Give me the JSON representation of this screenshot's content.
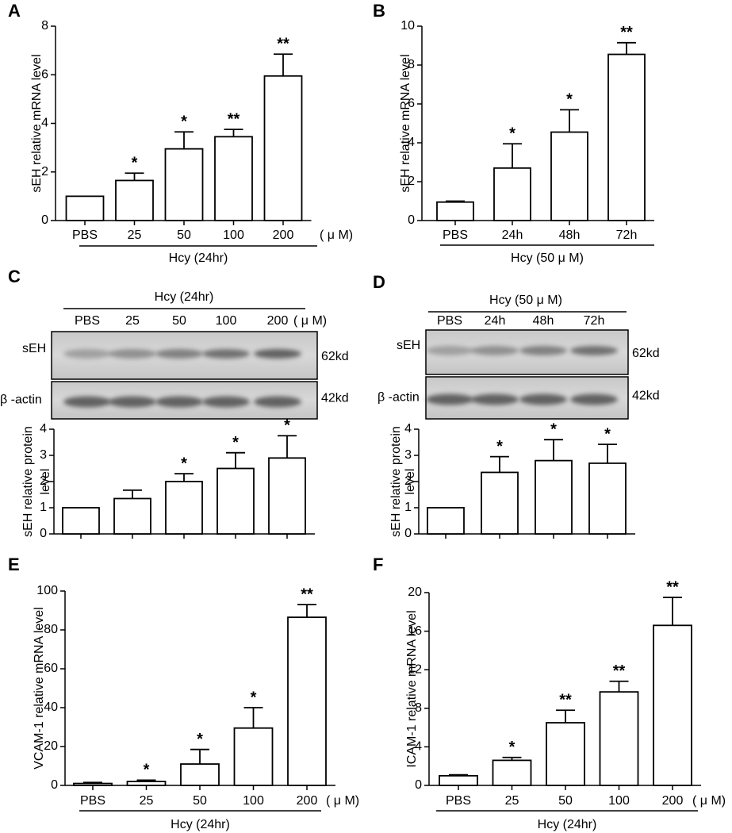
{
  "chart_data": [
    {
      "type": "bar",
      "panel": "A",
      "ylabel": [
        "sEH relative mRNA level"
      ],
      "categories": [
        "PBS",
        "25",
        "50",
        "100",
        "200"
      ],
      "unit": "( μ M)",
      "group_label": "Hcy (24hr)",
      "values": [
        1,
        1.65,
        2.95,
        3.45,
        5.95
      ],
      "errors": [
        null,
        0.3,
        0.7,
        0.3,
        0.9
      ],
      "annotations": [
        null,
        "*",
        "*",
        "**",
        "**"
      ],
      "ylim": [
        0,
        8
      ],
      "yticks": [
        0,
        2,
        4,
        6,
        8
      ],
      "color": "#ffffff"
    },
    {
      "type": "bar",
      "panel": "B",
      "ylabel": [
        "sEH relative mRNA level"
      ],
      "categories": [
        "PBS",
        "24h",
        "48h",
        "72h"
      ],
      "group_label": "Hcy (50 μ M)",
      "values": [
        0.95,
        2.7,
        4.55,
        8.55
      ],
      "errors": [
        0.05,
        1.25,
        1.15,
        0.6
      ],
      "annotations": [
        null,
        "*",
        "*",
        "**"
      ],
      "ylim": [
        0,
        10
      ],
      "yticks": [
        0,
        2,
        4,
        6,
        8,
        10
      ],
      "color": "#ffffff"
    },
    {
      "type": "bar",
      "panel": "C",
      "ylabel": [
        "sEH relative protein",
        "level"
      ],
      "categories": [
        null,
        null,
        null,
        null,
        null
      ],
      "values": [
        1,
        1.35,
        2.0,
        2.5,
        2.9
      ],
      "errors": [
        null,
        0.32,
        0.3,
        0.6,
        0.85
      ],
      "annotations": [
        null,
        null,
        "*",
        "*",
        "*"
      ],
      "ylim": [
        0,
        4
      ],
      "yticks": [
        0,
        1,
        2,
        3,
        4
      ],
      "color": "#ffffff",
      "blot": {
        "header": "Hcy (24hr)",
        "lanes": [
          "PBS",
          "25",
          "50",
          "100",
          "200"
        ],
        "unit": "( μ M)",
        "rows": [
          {
            "label": "sEH",
            "size": "62kd"
          },
          {
            "label": "β -actin",
            "size": "42kd"
          }
        ]
      }
    },
    {
      "type": "bar",
      "panel": "D",
      "ylabel": [
        "sEH relative protein",
        "level"
      ],
      "categories": [
        null,
        null,
        null,
        null
      ],
      "values": [
        1,
        2.35,
        2.8,
        2.7
      ],
      "errors": [
        null,
        0.6,
        0.8,
        0.72
      ],
      "annotations": [
        null,
        "*",
        "*",
        "*"
      ],
      "ylim": [
        0,
        4
      ],
      "yticks": [
        0,
        1,
        2,
        3,
        4
      ],
      "color": "#ffffff",
      "blot": {
        "header": "Hcy (50 μ M)",
        "lanes": [
          "PBS",
          "24h",
          "48h",
          "72h"
        ],
        "rows": [
          {
            "label": "sEH",
            "size": "62kd"
          },
          {
            "label": "β -actin",
            "size": "42kd"
          }
        ]
      }
    },
    {
      "type": "bar",
      "panel": "E",
      "ylabel": [
        "VCAM-1 relative mRNA level"
      ],
      "categories": [
        "PBS",
        "25",
        "50",
        "100",
        "200"
      ],
      "unit": "( μ M)",
      "group_label": "Hcy (24hr)",
      "values": [
        1,
        2,
        11,
        29.5,
        86.5
      ],
      "errors": [
        0.5,
        0.7,
        7.5,
        10.5,
        6.5
      ],
      "annotations": [
        null,
        "*",
        "*",
        "*",
        "**"
      ],
      "ylim": [
        0,
        100
      ],
      "yticks": [
        0,
        20,
        40,
        60,
        80,
        100
      ],
      "color": "#ffffff"
    },
    {
      "type": "bar",
      "panel": "F",
      "ylabel": [
        "ICAM-1 relative mRNA level"
      ],
      "categories": [
        "PBS",
        "25",
        "50",
        "100",
        "200"
      ],
      "unit": "( μ M)",
      "group_label": "Hcy (24hr)",
      "values": [
        1,
        2.6,
        6.5,
        9.7,
        16.6
      ],
      "errors": [
        0.1,
        0.3,
        1.3,
        1.1,
        2.9
      ],
      "annotations": [
        null,
        "*",
        "**",
        "**",
        "**"
      ],
      "ylim": [
        0,
        20
      ],
      "yticks": [
        0,
        4,
        8,
        12,
        16,
        20
      ],
      "color": "#ffffff"
    }
  ]
}
